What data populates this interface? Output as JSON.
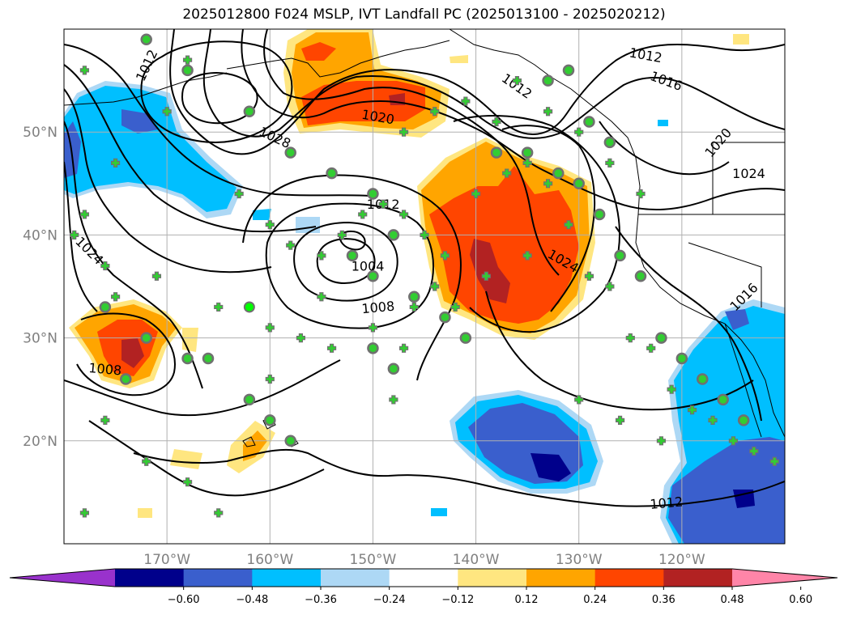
{
  "title": "2025012800 F024 MSLP, IVT Landfall PC (2025013100 - 2025020212)",
  "map": {
    "lon_range": [
      -180,
      -110
    ],
    "lat_range": [
      10,
      60
    ],
    "lon_ticks": [
      {
        "value": -170,
        "label": "170°W"
      },
      {
        "value": -160,
        "label": "160°W"
      },
      {
        "value": -150,
        "label": "150°W"
      },
      {
        "value": -140,
        "label": "140°W"
      },
      {
        "value": -130,
        "label": "130°W"
      },
      {
        "value": -120,
        "label": "120°W"
      }
    ],
    "lat_ticks": [
      {
        "value": 50,
        "label": "50°N"
      },
      {
        "value": 40,
        "label": "40°N"
      },
      {
        "value": 30,
        "label": "30°N"
      },
      {
        "value": 20,
        "label": "20°N"
      }
    ],
    "grid": true,
    "isobar_labels": [
      {
        "text": "1012",
        "lon": -172,
        "lat": 56.5,
        "rot": -65
      },
      {
        "text": "1020",
        "lon": -149.5,
        "lat": 51.5,
        "rot": 10
      },
      {
        "text": "1012",
        "lon": -136,
        "lat": 54.5,
        "rot": 35
      },
      {
        "text": "1012",
        "lon": -123.5,
        "lat": 57.5,
        "rot": 10
      },
      {
        "text": "1016",
        "lon": -121.5,
        "lat": 55,
        "rot": 20
      },
      {
        "text": "1028",
        "lon": -159.5,
        "lat": 49.5,
        "rot": 25
      },
      {
        "text": "1024",
        "lon": -177.5,
        "lat": 38.5,
        "rot": 45
      },
      {
        "text": "1012",
        "lon": -149,
        "lat": 43,
        "rot": 0
      },
      {
        "text": "1004",
        "lon": -150.5,
        "lat": 37,
        "rot": 0
      },
      {
        "text": "1008",
        "lon": -149.5,
        "lat": 33,
        "rot": -5
      },
      {
        "text": "1024",
        "lon": -131.5,
        "lat": 37.5,
        "rot": 30
      },
      {
        "text": "1024",
        "lon": -113.5,
        "lat": 46,
        "rot": 0
      },
      {
        "text": "1020",
        "lon": -116.5,
        "lat": 49,
        "rot": -50
      },
      {
        "text": "1016",
        "lon": -114,
        "lat": 34,
        "rot": -45
      },
      {
        "text": "1008",
        "lon": -176,
        "lat": 27,
        "rot": 5
      },
      {
        "text": "1012",
        "lon": -121.5,
        "lat": 14,
        "rot": -5
      }
    ],
    "fill_colors": {
      "darkred": "#b22222",
      "red": "#ff4500",
      "orange": "#ffa500",
      "yellow": "#ffe680",
      "lightblue": "#add8f5",
      "blue": "#00bfff",
      "royal": "#3a5fcd",
      "navy": "#00008b",
      "purple": "#8b2d9e",
      "pink": "#ff85a8"
    }
  },
  "colorbar": {
    "colors": [
      "#9932cc",
      "#00008b",
      "#3a5fcd",
      "#00bfff",
      "#add8f5",
      "#ffffff",
      "#ffe680",
      "#ffa500",
      "#ff4500",
      "#b22222",
      "#ff85a8"
    ],
    "ticks": [
      "−0.60",
      "−0.48",
      "−0.36",
      "−0.24",
      "−0.12",
      "0.12",
      "0.24",
      "0.36",
      "0.48",
      "0.60"
    ]
  }
}
